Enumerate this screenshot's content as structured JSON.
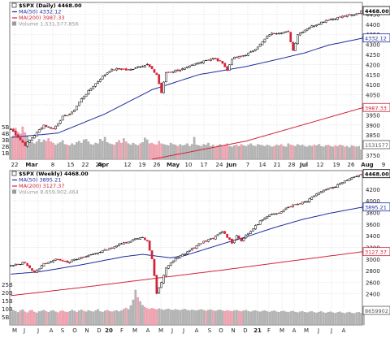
{
  "chart_data": [
    {
      "type": "candlestick",
      "symbol": "$SPX (Daily) 4468.00",
      "legend": [
        {
          "key": "symbol",
          "label": "$SPX (Daily) 4468.00",
          "color": "#000000",
          "swatch": "candle"
        },
        {
          "key": "ma50",
          "label": "MA(50) 4332.12",
          "color": "#1f2b9e",
          "swatch": "line"
        },
        {
          "key": "ma200",
          "label": "MA(200) 3987.33",
          "color": "#d0243a",
          "swatch": "line"
        },
        {
          "key": "volume",
          "label": "Volume 1,531,577,856",
          "color": "#9a9a9a",
          "swatch": "bar"
        }
      ],
      "x_tick_labels": [
        "22",
        "Mar",
        "8",
        "15",
        "22",
        "29",
        "Apr",
        "12",
        "19",
        "26",
        "May",
        "10",
        "17",
        "24",
        "Jun",
        "7",
        "14",
        "21",
        "28",
        "Jul",
        "12",
        "19",
        "26",
        "Aug",
        "9"
      ],
      "y_tick_labels": [
        "3750",
        "3800",
        "3850",
        "3900",
        "3950",
        "4000",
        "4050",
        "4100",
        "4150",
        "4200",
        "4250",
        "4300",
        "4350",
        "4400",
        "4450"
      ],
      "ylim": [
        3730,
        4480
      ],
      "volume_tick_labels": [
        "1B",
        "2B",
        "3B",
        "4B",
        "5B"
      ],
      "price_tags": [
        "4468.00",
        "4332.12",
        "3987.33",
        "1531577"
      ],
      "close_points": [
        [
          0,
          3880
        ],
        [
          6,
          3800
        ],
        [
          10,
          3850
        ],
        [
          14,
          3900
        ],
        [
          18,
          3880
        ],
        [
          22,
          3940
        ],
        [
          26,
          3960
        ],
        [
          30,
          4030
        ],
        [
          34,
          4080
        ],
        [
          38,
          4130
        ],
        [
          42,
          4170
        ],
        [
          46,
          4180
        ],
        [
          50,
          4170
        ],
        [
          54,
          4190
        ],
        [
          58,
          4200
        ],
        [
          62,
          4150
        ],
        [
          64,
          4060
        ],
        [
          66,
          4160
        ],
        [
          70,
          4170
        ],
        [
          74,
          4180
        ],
        [
          78,
          4200
        ],
        [
          82,
          4220
        ],
        [
          86,
          4230
        ],
        [
          90,
          4210
        ],
        [
          92,
          4170
        ],
        [
          94,
          4230
        ],
        [
          98,
          4240
        ],
        [
          102,
          4260
        ],
        [
          106,
          4300
        ],
        [
          110,
          4350
        ],
        [
          114,
          4360
        ],
        [
          118,
          4360
        ],
        [
          120,
          4270
        ],
        [
          122,
          4350
        ],
        [
          126,
          4380
        ],
        [
          130,
          4400
        ],
        [
          134,
          4420
        ],
        [
          138,
          4430
        ],
        [
          142,
          4440
        ],
        [
          146,
          4448
        ],
        [
          150,
          4468
        ]
      ],
      "ma50_points": [
        [
          0,
          3838
        ],
        [
          20,
          3860
        ],
        [
          40,
          3955
        ],
        [
          60,
          4075
        ],
        [
          80,
          4150
        ],
        [
          100,
          4190
        ],
        [
          115,
          4230
        ],
        [
          125,
          4258
        ],
        [
          135,
          4296
        ],
        [
          150,
          4332
        ]
      ],
      "ma200_points": [
        [
          60,
          3730
        ],
        [
          100,
          3820
        ],
        [
          150,
          3987
        ]
      ],
      "volume_billions": [
        3.2,
        3.6,
        4.8,
        4.2,
        3.9,
        5.0,
        4.1,
        3.5,
        2.9,
        2.6,
        2.4,
        2.7,
        3.1,
        2.6,
        3.0,
        2.8,
        3.2,
        2.7,
        2.5,
        2.2,
        2.4,
        2.6,
        2.9,
        2.3,
        2.2,
        2.1,
        2.4,
        2.2,
        2.6,
        2.8,
        2.5,
        3.0,
        3.1,
        2.7,
        2.3,
        2.2,
        2.5,
        2.4,
        3.1,
        2.8,
        3.4,
        2.6,
        2.4,
        2.3,
        2.2,
        2.6,
        2.9,
        2.5,
        3.2,
        2.7,
        2.4,
        2.2,
        2.5,
        2.3,
        2.1,
        2.4,
        2.6,
        3.3,
        3.0,
        2.4,
        2.5,
        2.3,
        2.2,
        2.8,
        2.4,
        2.3,
        2.2,
        2.1,
        2.5,
        2.3,
        2.2,
        2.0,
        2.3,
        2.1,
        2.2,
        2.4,
        2.0,
        2.3,
        3.4,
        2.2,
        2.1,
        2.0,
        2.3,
        2.2,
        2.5,
        2.0,
        2.2,
        1.9,
        2.1,
        2.3,
        2.0,
        2.2,
        2.4,
        2.0,
        1.9,
        2.1,
        2.2,
        2.0,
        2.3,
        2.1,
        2.0,
        2.2,
        2.4,
        2.1,
        2.0,
        2.3,
        2.2,
        2.1,
        2.0,
        2.2,
        2.1,
        1.9,
        2.0,
        2.2,
        2.1,
        2.3,
        2.0,
        1.9,
        2.4,
        2.2,
        2.1,
        2.0,
        2.3,
        2.1,
        2.2,
        2.0,
        1.9,
        2.1,
        2.0,
        2.2,
        2.1,
        2.3,
        2.0,
        1.9,
        2.1,
        2.2,
        2.0,
        1.9,
        2.1,
        2.0,
        2.2,
        2.1,
        1.9,
        2.0,
        1.8,
        2.1,
        2.0,
        1.9,
        2.0,
        1.5
      ],
      "grid": true
    },
    {
      "type": "candlestick",
      "symbol": "$SPX (Weekly) 4468.00",
      "legend": [
        {
          "key": "symbol",
          "label": "$SPX (Weekly) 4468.00",
          "color": "#000000",
          "swatch": "candle"
        },
        {
          "key": "ma50",
          "label": "MA(50) 3895.21",
          "color": "#1f2b9e",
          "swatch": "line"
        },
        {
          "key": "ma200",
          "label": "MA(200) 3127.37",
          "color": "#d0243a",
          "swatch": "line"
        },
        {
          "key": "volume",
          "label": "Volume 8,659,902,464",
          "color": "#9a9a9a",
          "swatch": "bar"
        }
      ],
      "x_tick_labels": [
        "M",
        "J",
        "J",
        "A",
        "S",
        "O",
        "N",
        "D",
        "20",
        "F",
        "M",
        "A",
        "M",
        "J",
        "J",
        "A",
        "S",
        "O",
        "N",
        "D",
        "21",
        "F",
        "M",
        "A",
        "M",
        "J",
        "J",
        "A"
      ],
      "y_tick_labels": [
        "2400",
        "2600",
        "2800",
        "3000",
        "3200",
        "3400",
        "3600",
        "3800",
        "4000",
        "4200"
      ],
      "ylim": [
        2200,
        4450
      ],
      "volume_tick_labels": [
        "5B",
        "10B",
        "15B",
        "20B",
        "25B"
      ],
      "price_tags": [
        "4468.00",
        "3895.21",
        "3127.37",
        "8659902"
      ],
      "close_points": [
        [
          0,
          2880
        ],
        [
          6,
          2940
        ],
        [
          10,
          2760
        ],
        [
          14,
          2920
        ],
        [
          20,
          3000
        ],
        [
          24,
          2950
        ],
        [
          30,
          3020
        ],
        [
          36,
          3100
        ],
        [
          42,
          3180
        ],
        [
          46,
          3250
        ],
        [
          50,
          3300
        ],
        [
          53,
          3350
        ],
        [
          56,
          3380
        ],
        [
          58,
          3300
        ],
        [
          60,
          3000
        ],
        [
          62,
          2400
        ],
        [
          64,
          2600
        ],
        [
          66,
          2850
        ],
        [
          70,
          3000
        ],
        [
          74,
          3100
        ],
        [
          78,
          3200
        ],
        [
          82,
          3300
        ],
        [
          86,
          3350
        ],
        [
          90,
          3480
        ],
        [
          92,
          3380
        ],
        [
          94,
          3280
        ],
        [
          96,
          3400
        ],
        [
          98,
          3320
        ],
        [
          102,
          3480
        ],
        [
          106,
          3650
        ],
        [
          110,
          3750
        ],
        [
          114,
          3800
        ],
        [
          118,
          3900
        ],
        [
          122,
          3950
        ],
        [
          126,
          4000
        ],
        [
          130,
          4130
        ],
        [
          134,
          4200
        ],
        [
          138,
          4250
        ],
        [
          142,
          4350
        ],
        [
          146,
          4420
        ],
        [
          150,
          4468
        ]
      ],
      "ma50_points": [
        [
          0,
          2740
        ],
        [
          12,
          2780
        ],
        [
          30,
          2900
        ],
        [
          48,
          3040
        ],
        [
          56,
          3080
        ],
        [
          62,
          3050
        ],
        [
          68,
          3020
        ],
        [
          74,
          3060
        ],
        [
          82,
          3160
        ],
        [
          90,
          3260
        ],
        [
          100,
          3380
        ],
        [
          112,
          3540
        ],
        [
          124,
          3680
        ],
        [
          136,
          3790
        ],
        [
          150,
          3895
        ]
      ],
      "ma200_points": [
        [
          0,
          2370
        ],
        [
          30,
          2510
        ],
        [
          60,
          2660
        ],
        [
          90,
          2810
        ],
        [
          120,
          2970
        ],
        [
          150,
          3127
        ]
      ],
      "volume_billions": [
        8.2,
        9.0,
        8.5,
        7.8,
        8.9,
        9.5,
        8.1,
        7.6,
        8.8,
        9.2,
        8.0,
        7.5,
        8.3,
        8.7,
        9.1,
        8.4,
        7.9,
        8.6,
        9.0,
        8.2,
        7.7,
        8.5,
        8.9,
        8.1,
        7.8,
        8.4,
        9.3,
        8.6,
        8.0,
        8.8,
        9.4,
        8.7,
        8.2,
        9.0,
        8.5,
        8.1,
        8.9,
        9.6,
        8.3,
        8.0,
        8.7,
        9.2,
        8.4,
        8.1,
        8.6,
        9.0,
        8.3,
        8.8,
        9.8,
        10.5,
        9.6,
        12.0,
        15.5,
        21.5,
        17.0,
        14.5,
        12.2,
        11.0,
        10.2,
        9.8,
        10.4,
        9.9,
        9.5,
        10.1,
        9.7,
        9.2,
        9.6,
        10.0,
        9.4,
        9.1,
        9.7,
        9.3,
        9.0,
        9.5,
        9.8,
        9.2,
        8.9,
        9.4,
        9.0,
        8.8,
        9.3,
        9.6,
        9.1,
        8.7,
        9.2,
        9.5,
        8.9,
        8.6,
        9.1,
        9.4,
        8.8,
        8.5,
        9.0,
        8.7,
        8.4,
        8.9,
        9.2,
        8.6,
        8.3,
        8.8,
        9.1,
        8.5,
        8.2,
        8.7,
        9.0,
        8.4,
        8.1,
        8.6,
        8.9,
        8.3,
        8.0,
        8.5,
        8.8,
        8.2,
        7.9,
        8.4,
        8.7,
        8.1,
        7.8,
        8.3,
        8.6,
        8.0,
        7.7,
        8.2,
        8.5,
        7.9,
        7.6,
        8.1,
        8.4,
        7.8,
        7.5,
        8.0,
        8.3,
        7.7,
        7.4,
        7.9,
        8.2,
        7.6,
        7.3,
        7.8,
        8.1,
        7.5,
        7.2,
        7.7,
        8.0,
        7.4,
        7.1,
        7.6,
        7.9,
        7.3,
        8.6
      ],
      "grid": true
    }
  ]
}
